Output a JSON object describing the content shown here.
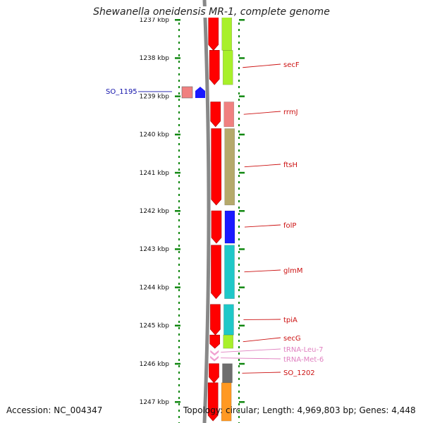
{
  "title": "Shewanella oneidensis MR-1, complete genome",
  "accession_text": "Accession: NC_004347",
  "info_text": "Topology: circular; Length: 4,969,803 bp; Genes: 4,448",
  "ruler": [
    {
      "label": "1237 kbp",
      "kbp": 1237
    },
    {
      "label": "1238 kbp",
      "kbp": 1238
    },
    {
      "label": "1239 kbp",
      "kbp": 1239
    },
    {
      "label": "1240 kbp",
      "kbp": 1240
    },
    {
      "label": "1241 kbp",
      "kbp": 1241
    },
    {
      "label": "1242 kbp",
      "kbp": 1242
    },
    {
      "label": "1243 kbp",
      "kbp": 1243
    },
    {
      "label": "1244 kbp",
      "kbp": 1244
    },
    {
      "label": "1245 kbp",
      "kbp": 1245
    },
    {
      "label": "1246 kbp",
      "kbp": 1246
    },
    {
      "label": "1247 kbp",
      "kbp": 1247
    }
  ],
  "genes": [
    {
      "name": "",
      "start_kbp": 1236.9,
      "end_kbp": 1237.8,
      "color": "#a8f02a"
    },
    {
      "name": "secF",
      "start_kbp": 1237.8,
      "end_kbp": 1238.7,
      "color": "#a8f02a"
    },
    {
      "name": "rrmJ",
      "start_kbp": 1239.15,
      "end_kbp": 1239.8,
      "color": "#f08080"
    },
    {
      "name": "ftsH",
      "start_kbp": 1239.85,
      "end_kbp": 1241.85,
      "color": "#b5a96a"
    },
    {
      "name": "folP",
      "start_kbp": 1242.0,
      "end_kbp": 1242.85,
      "color": "#1a1aff"
    },
    {
      "name": "glmM",
      "start_kbp": 1242.9,
      "end_kbp": 1244.3,
      "color": "#1ec8c8"
    },
    {
      "name": "tpiA",
      "start_kbp": 1244.45,
      "end_kbp": 1245.25,
      "color": "#1ec8c8"
    },
    {
      "name": "secG",
      "start_kbp": 1245.25,
      "end_kbp": 1245.6,
      "color": "#a8f02a"
    },
    {
      "name": "SO_1202",
      "start_kbp": 1246.0,
      "end_kbp": 1246.5,
      "color": "#6e6e6e"
    },
    {
      "name": "",
      "start_kbp": 1246.5,
      "end_kbp": 1247.5,
      "color": "#ff9922"
    }
  ],
  "trnas": [
    {
      "name": "tRNA-Leu-7",
      "kbp": 1245.7,
      "color": "#f0a0d0"
    },
    {
      "name": "tRNA-Met-6",
      "kbp": 1245.85,
      "color": "#f0a0d0"
    }
  ],
  "reverse_genes": [
    {
      "name": "SO_1195",
      "kbp": 1238.9,
      "colors": [
        "#f08080",
        "#1a1aff"
      ]
    }
  ],
  "label_color": "#cc1111",
  "reverse_label_color": "#1111aa",
  "trna_label_color": "#e080c0",
  "cds_color": "#ff0000",
  "tick_color": "#118811",
  "backbone_color": "#888888"
}
